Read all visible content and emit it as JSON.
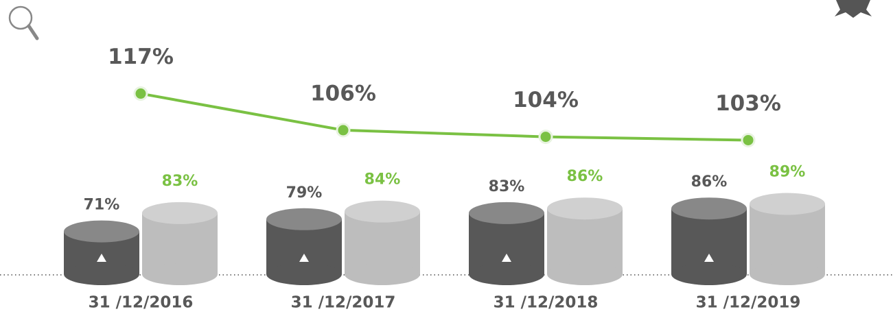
{
  "chart_data": {
    "type": "bar",
    "categories": [
      "31 /12/2016",
      "31 /12/2017",
      "31 /12/2018",
      "31 /12/2019"
    ],
    "series": [
      {
        "color": "#585858",
        "label_color": "#585858",
        "values": [
          71,
          79,
          83,
          86
        ],
        "value_labels": [
          "71%",
          "79%",
          "83%",
          "86%"
        ]
      },
      {
        "color": "#bdbdbd",
        "label_color": "#7ac143",
        "values": [
          83,
          84,
          86,
          89
        ],
        "value_labels": [
          "83%",
          "84%",
          "86%",
          "89%"
        ]
      },
      {
        "type": "line",
        "axis": "y2",
        "color": "#7ac143",
        "label_color": "#585858",
        "values": [
          117,
          106,
          104,
          103
        ],
        "value_labels": [
          "117%",
          "106%",
          "104%",
          "103%"
        ]
      }
    ],
    "ylim": [
      43,
      100
    ],
    "y2lim": [
      100,
      120
    ]
  }
}
